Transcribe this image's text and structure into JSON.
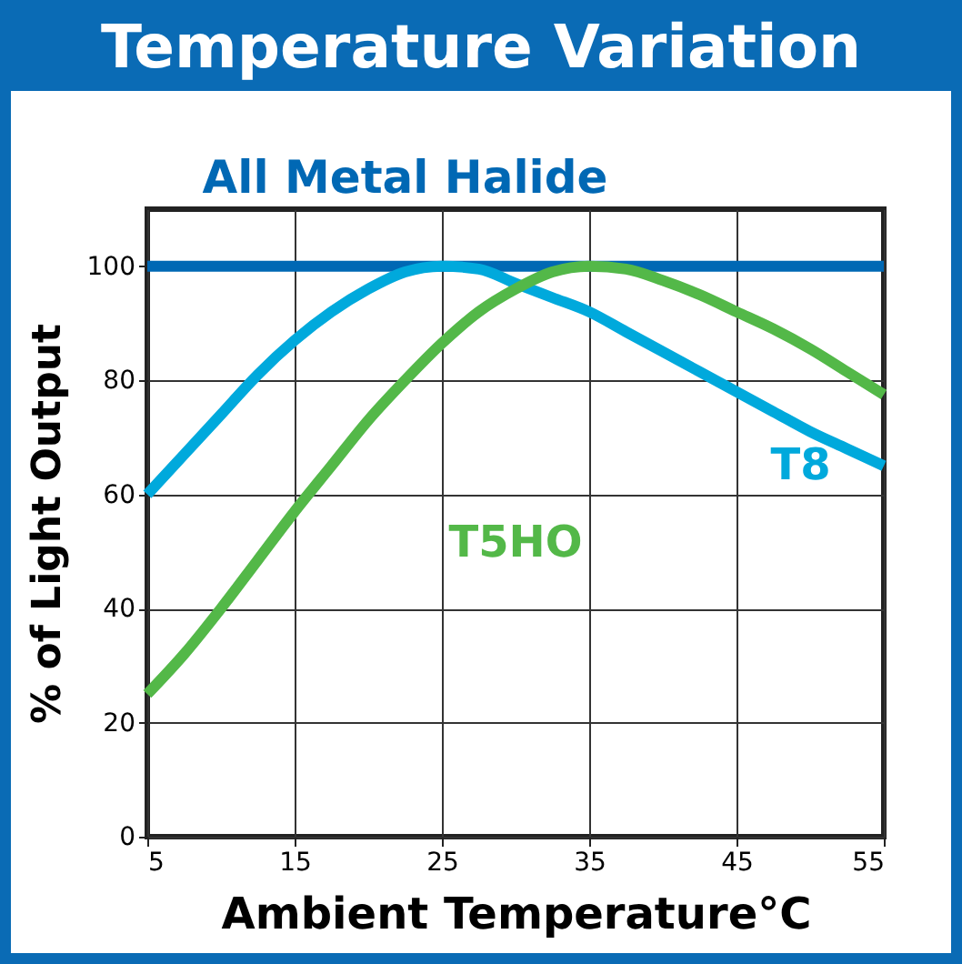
{
  "chart_data": {
    "type": "line",
    "title": "Temperature Variation",
    "xlabel": "Ambient Temperature°C",
    "ylabel": "% of Light Output",
    "x": [
      5,
      7.5,
      10,
      12.5,
      15,
      17.5,
      20,
      22.5,
      25,
      27.5,
      30,
      32.5,
      35,
      37.5,
      40,
      42.5,
      45,
      47.5,
      50,
      52.5,
      55
    ],
    "series": [
      {
        "name": "All Metal Halide",
        "color": "#0068b4",
        "values": [
          100,
          100,
          100,
          100,
          100,
          100,
          100,
          100,
          100,
          100,
          100,
          100,
          100,
          100,
          100,
          100,
          100,
          100,
          100,
          100,
          100
        ]
      },
      {
        "name": "T8",
        "color": "#00a9dc",
        "values": [
          60,
          67,
          74,
          81,
          87,
          92,
          96,
          99,
          100,
          99.5,
          97,
          94.5,
          92,
          88.5,
          85,
          81.5,
          78,
          74.5,
          71,
          68,
          65
        ]
      },
      {
        "name": "T5HO",
        "color": "#53b848",
        "values": [
          25,
          32,
          40,
          48.5,
          57,
          65,
          73,
          80,
          86.5,
          92,
          96,
          99,
          100,
          99.5,
          97.5,
          95,
          92,
          89,
          85.5,
          81.5,
          77.5
        ]
      }
    ],
    "xlim": [
      5,
      55
    ],
    "xticks": [
      5,
      15,
      25,
      35,
      45,
      55
    ],
    "ylim": [
      0,
      110
    ],
    "yticks": [
      0,
      20,
      40,
      60,
      80,
      100
    ],
    "grid": true,
    "legend": false,
    "marker": "none",
    "line_style": "solid"
  }
}
